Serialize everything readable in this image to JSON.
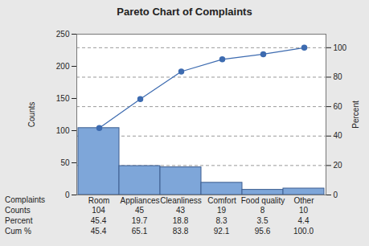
{
  "chart_data": {
    "type": "bar",
    "title": "Pareto Chart of Complaints",
    "xlabel": "Complaints",
    "ylabel": "Counts",
    "y2label": "Percent",
    "categories": [
      "Room",
      "Appliances",
      "Cleanliness",
      "Comfort",
      "Food quality",
      "Other"
    ],
    "series": [
      {
        "name": "Counts",
        "type": "bar",
        "color": "#7ea6d9",
        "values": [
          104,
          45,
          43,
          19,
          8,
          10
        ]
      },
      {
        "name": "Percent",
        "type": "table",
        "values": [
          45.4,
          19.7,
          18.8,
          8.3,
          3.5,
          4.4
        ]
      },
      {
        "name": "Cum %",
        "type": "line",
        "axis": "y2",
        "color": "#3d6bb0",
        "marker": "circle",
        "values": [
          45.4,
          65.1,
          83.8,
          92.1,
          95.6,
          100
        ],
        "value_labels": [
          "45.4",
          "65.1",
          "83.8",
          "92.1",
          "95.6",
          "100.0"
        ]
      }
    ],
    "ylim": [
      0,
      250
    ],
    "yticks": [
      0,
      50,
      100,
      150,
      200,
      250
    ],
    "y2lim": [
      0,
      109.2
    ],
    "y2ticks": [
      0,
      20,
      40,
      60,
      80,
      100
    ],
    "grid": true
  }
}
